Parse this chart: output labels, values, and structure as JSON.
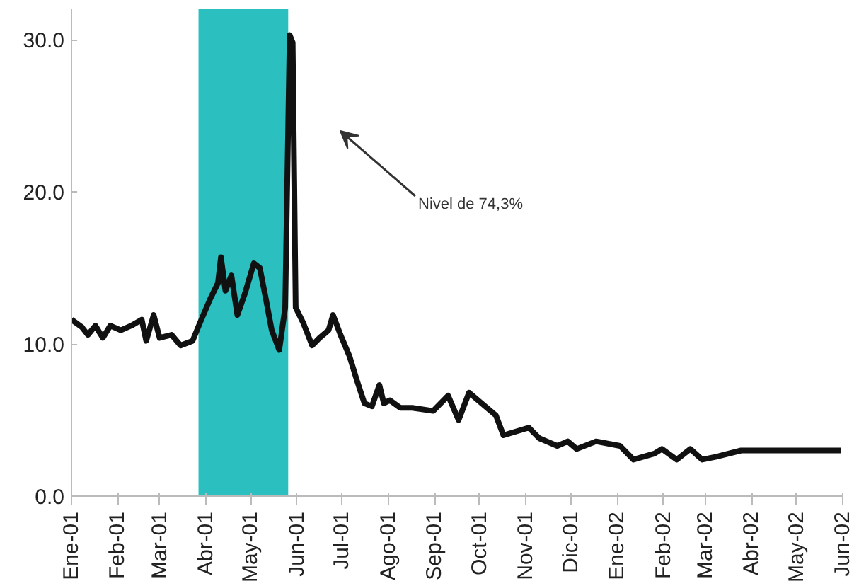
{
  "chart_data": {
    "type": "line",
    "annotations": [
      "Nivel de 74,3%"
    ],
    "xlim": [
      "2001-01",
      "2002-06"
    ],
    "xticks": [
      {
        "value": "2001-01",
        "label": "Ene-01"
      },
      {
        "value": "2001-02",
        "label": "Feb-01"
      },
      {
        "value": "2001-03",
        "label": "Mar-01"
      },
      {
        "value": "2001-04",
        "label": "Abr-01"
      },
      {
        "value": "2001-05",
        "label": "May-01"
      },
      {
        "value": "2001-06",
        "label": "Jun-01"
      },
      {
        "value": "2001-07",
        "label": "Jul-01"
      },
      {
        "value": "2001-08",
        "label": "Ago-01"
      },
      {
        "value": "2001-09",
        "label": "Sep-01"
      },
      {
        "value": "2001-10",
        "label": "Oct-01"
      },
      {
        "value": "2001-11",
        "label": "Nov-01"
      },
      {
        "value": "2001-12",
        "label": "Dic-01"
      },
      {
        "value": "2002-01",
        "label": "Ene-02"
      },
      {
        "value": "2002-02",
        "label": "Feb-02"
      },
      {
        "value": "2002-03",
        "label": "Mar-02"
      },
      {
        "value": "2002-04",
        "label": "Abr-02"
      },
      {
        "value": "2002-05",
        "label": "May-02"
      },
      {
        "value": "2002-06",
        "label": "Jun-02"
      }
    ],
    "ylim": [
      0,
      32
    ],
    "yticks": [
      {
        "value": 0,
        "label": "0.0"
      },
      {
        "value": 10,
        "label": "10.0"
      },
      {
        "value": 20,
        "label": "20.0"
      },
      {
        "value": 30,
        "label": "30.0"
      }
    ],
    "marker": "none",
    "line_style": "solid",
    "bands": [
      {
        "axis": "x",
        "from": "2001-03-27",
        "to": "2001-05-26",
        "color": "#2bbfbf"
      }
    ],
    "series": [
      {
        "color": "#111111",
        "x": [
          "2001-01-01",
          "2001-01-08",
          "2001-01-12",
          "2001-01-17",
          "2001-01-22",
          "2001-01-27",
          "2001-02-03",
          "2001-02-10",
          "2001-02-17",
          "2001-02-20",
          "2001-02-25",
          "2001-03-01",
          "2001-03-09",
          "2001-03-15",
          "2001-03-23",
          "2001-03-28",
          "2001-04-04",
          "2001-04-09",
          "2001-04-11",
          "2001-04-14",
          "2001-04-18",
          "2001-04-22",
          "2001-04-27",
          "2001-05-03",
          "2001-05-07",
          "2001-05-11",
          "2001-05-15",
          "2001-05-20",
          "2001-05-24",
          "2001-05-27",
          "2001-05-29",
          "2001-05-31",
          "2001-06-05",
          "2001-06-11",
          "2001-06-16",
          "2001-06-22",
          "2001-06-25",
          "2001-06-30",
          "2001-07-06",
          "2001-07-11",
          "2001-07-16",
          "2001-07-21",
          "2001-07-26",
          "2001-07-29",
          "2001-08-02",
          "2001-08-09",
          "2001-08-17",
          "2001-08-31",
          "2001-09-10",
          "2001-09-17",
          "2001-09-24",
          "2001-10-12",
          "2001-10-17",
          "2001-11-03",
          "2001-11-10",
          "2001-11-22",
          "2001-11-29",
          "2001-12-05",
          "2001-12-18",
          "2002-01-03",
          "2002-01-12",
          "2002-01-26",
          "2002-01-31",
          "2002-02-10",
          "2002-02-19",
          "2002-02-27",
          "2002-03-09",
          "2002-03-25",
          "2002-05-31"
        ],
        "values": [
          11.6,
          11.1,
          10.6,
          11.2,
          10.4,
          11.2,
          10.9,
          11.2,
          11.6,
          10.2,
          11.9,
          10.4,
          10.6,
          9.9,
          10.2,
          11.4,
          13.0,
          14.0,
          15.7,
          13.5,
          14.5,
          11.9,
          13.3,
          15.3,
          15.0,
          13.0,
          10.9,
          9.6,
          12.4,
          30.3,
          29.8,
          12.4,
          11.4,
          9.9,
          10.4,
          10.9,
          11.9,
          10.6,
          9.2,
          7.6,
          6.1,
          5.9,
          7.3,
          6.1,
          6.3,
          5.8,
          5.8,
          5.6,
          6.6,
          5.0,
          6.8,
          5.3,
          4.0,
          4.5,
          3.8,
          3.3,
          3.6,
          3.1,
          3.6,
          3.3,
          2.4,
          2.8,
          3.1,
          2.4,
          3.1,
          2.4,
          2.6,
          3.0,
          3.0
        ]
      }
    ]
  }
}
